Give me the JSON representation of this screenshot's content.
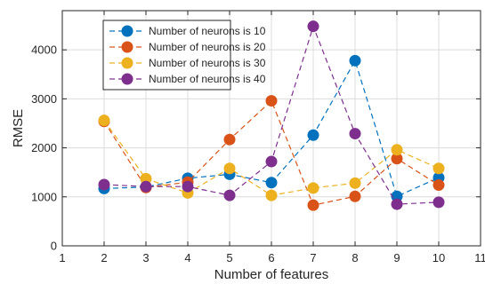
{
  "chart_data": {
    "type": "line",
    "xlabel": "Number of features",
    "ylabel": "RMSE",
    "xlim": [
      1,
      11
    ],
    "ylim": [
      0,
      4800
    ],
    "xticks": [
      1,
      2,
      3,
      4,
      5,
      6,
      7,
      8,
      9,
      10,
      11
    ],
    "yticks": [
      0,
      1000,
      2000,
      3000,
      4000
    ],
    "grid": true,
    "legend_position": "top-left",
    "x": [
      2,
      3,
      4,
      5,
      6,
      7,
      8,
      9,
      10
    ],
    "series": [
      {
        "name": "Number of neurons is 10",
        "color": "#0072BD",
        "values": [
          1170,
          1200,
          1380,
          1460,
          1290,
          2260,
          3780,
          1010,
          1390
        ]
      },
      {
        "name": "Number of neurons is 20",
        "color": "#D95319",
        "values": [
          2540,
          1190,
          1300,
          2170,
          2960,
          830,
          1010,
          1780,
          1240
        ]
      },
      {
        "name": "Number of neurons is 30",
        "color": "#EDB120",
        "values": [
          2560,
          1370,
          1080,
          1580,
          1030,
          1180,
          1280,
          1960,
          1580
        ]
      },
      {
        "name": "Number of neurons is 40",
        "color": "#7E2F8E",
        "values": [
          1250,
          1210,
          1210,
          1030,
          1720,
          4480,
          2290,
          850,
          890
        ]
      }
    ]
  }
}
